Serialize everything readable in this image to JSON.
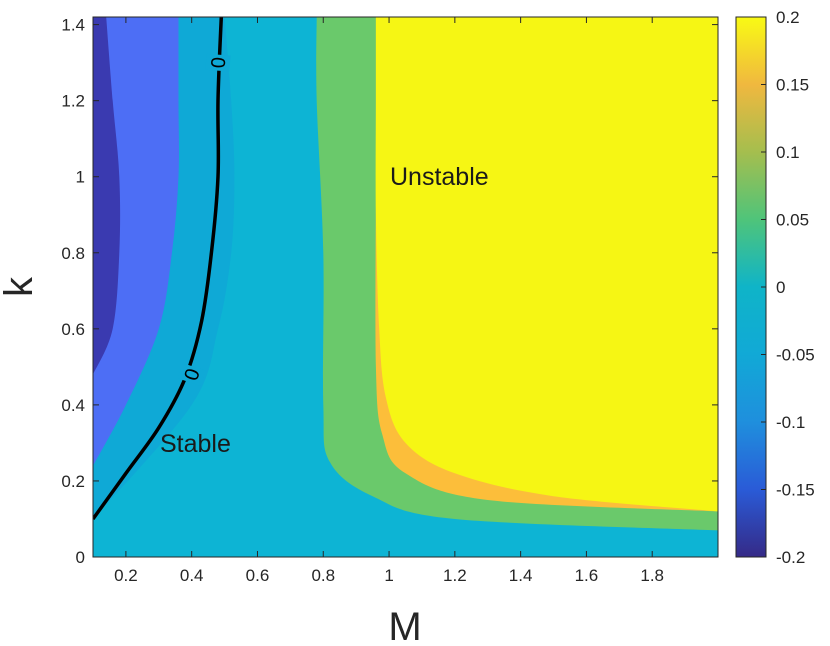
{
  "chart_data": {
    "type": "contour",
    "xlabel": "M",
    "ylabel": "k",
    "xlim": [
      0.1,
      2.0
    ],
    "ylim": [
      0,
      1.42
    ],
    "xticks": [
      0.2,
      0.4,
      0.6,
      0.8,
      1,
      1.2,
      1.4,
      1.6,
      1.8
    ],
    "xtick_labels": [
      "0.2",
      "0.4",
      "0.6",
      "0.8",
      "1",
      "1.2",
      "1.4",
      "1.6",
      "1.8"
    ],
    "yticks": [
      0,
      0.2,
      0.4,
      0.6,
      0.8,
      1,
      1.2,
      1.4
    ],
    "ytick_labels": [
      "0",
      "0.2",
      "0.4",
      "0.6",
      "0.8",
      "1",
      "1.2",
      "1.4"
    ],
    "grid": false,
    "levels": [
      -0.2,
      -0.15,
      -0.1,
      -0.05,
      0,
      0.05,
      0.1,
      0.15,
      0.2
    ],
    "colorbar": {
      "range": [
        -0.2,
        0.2
      ],
      "ticks": [
        -0.2,
        -0.15,
        -0.1,
        -0.05,
        0,
        0.05,
        0.1,
        0.15,
        0.2
      ],
      "tick_labels": [
        "-0.2",
        "-0.15",
        "-0.1",
        "-0.05",
        "0",
        "0.05",
        "0.1",
        "0.15",
        "0.2"
      ],
      "colormap": "parula",
      "colors": [
        "#352a87",
        "#2a5bd7",
        "#1f8fdd",
        "#0fb4c8",
        "#2cc39a",
        "#6ac468",
        "#c4ba4d",
        "#fcbe3a",
        "#f9fa14"
      ]
    },
    "regions": [
      {
        "level_range": [
          -0.15,
          -0.1
        ],
        "color": "#3a3ab0",
        "boundary": [
          [
            0.1,
            0.48
          ],
          [
            0.16,
            0.6
          ],
          [
            0.18,
            0.8
          ],
          [
            0.18,
            1.0
          ],
          [
            0.16,
            1.2
          ],
          [
            0.14,
            1.42
          ]
        ]
      },
      {
        "level_range": [
          -0.1,
          -0.05
        ],
        "color": "#4d6ef5",
        "boundary": [
          [
            0.1,
            0.24
          ],
          [
            0.2,
            0.4
          ],
          [
            0.3,
            0.6
          ],
          [
            0.34,
            0.8
          ],
          [
            0.36,
            1.0
          ],
          [
            0.36,
            1.2
          ],
          [
            0.36,
            1.42
          ]
        ]
      },
      {
        "level_range": [
          -0.05,
          0.0
        ],
        "color": "#0fa9d6",
        "boundary": [
          [
            0.1,
            0.1
          ],
          [
            0.4,
            0.4
          ],
          [
            0.48,
            0.6
          ],
          [
            0.52,
            0.8
          ],
          [
            0.53,
            1.0
          ],
          [
            0.52,
            1.2
          ],
          [
            0.5,
            1.42
          ]
        ]
      },
      {
        "level_range": [
          0.0,
          0.05
        ],
        "color": "#0db4d4",
        "boundary": [
          [
            2.0,
            0.02
          ],
          [
            1.0,
            0.06
          ],
          [
            0.7,
            0.1
          ],
          [
            0.6,
            0.15
          ],
          [
            0.55,
            0.25
          ],
          [
            0.6,
            0.4
          ],
          [
            0.6,
            0.8
          ],
          [
            0.6,
            1.2
          ],
          [
            0.6,
            1.42
          ]
        ]
      },
      {
        "level_range": [
          0.05,
          0.1
        ],
        "color": "#6ac96b",
        "boundary": [
          [
            2.0,
            0.07
          ],
          [
            1.2,
            0.1
          ],
          [
            0.95,
            0.16
          ],
          [
            0.82,
            0.25
          ],
          [
            0.8,
            0.4
          ],
          [
            0.8,
            0.8
          ],
          [
            0.78,
            1.2
          ],
          [
            0.78,
            1.42
          ]
        ]
      },
      {
        "level_range": [
          0.1,
          0.15
        ],
        "color": "#fcbe3a",
        "boundary": [
          [
            2.0,
            0.12
          ],
          [
            1.3,
            0.15
          ],
          [
            1.05,
            0.22
          ],
          [
            0.98,
            0.32
          ],
          [
            0.96,
            0.5
          ],
          [
            0.96,
            1.0
          ],
          [
            0.96,
            1.42
          ]
        ]
      },
      {
        "level_range": [
          0.15,
          0.2
        ],
        "color": "#f6f614",
        "boundary": [
          [
            2.0,
            0.12
          ],
          [
            0.96,
            1.42
          ]
        ]
      }
    ],
    "contour_lines": [
      {
        "level": 0,
        "label": "0",
        "points": [
          [
            0.1,
            0.1
          ],
          [
            0.2,
            0.22
          ],
          [
            0.3,
            0.34
          ],
          [
            0.38,
            0.47
          ],
          [
            0.43,
            0.62
          ],
          [
            0.46,
            0.8
          ],
          [
            0.48,
            1.0
          ],
          [
            0.48,
            1.2
          ],
          [
            0.49,
            1.42
          ]
        ]
      }
    ],
    "annotations": [
      {
        "text": "Stable",
        "x": 0.3,
        "y": 0.3
      },
      {
        "text": "Unstable",
        "x": 1.0,
        "y": 1.0
      }
    ]
  }
}
